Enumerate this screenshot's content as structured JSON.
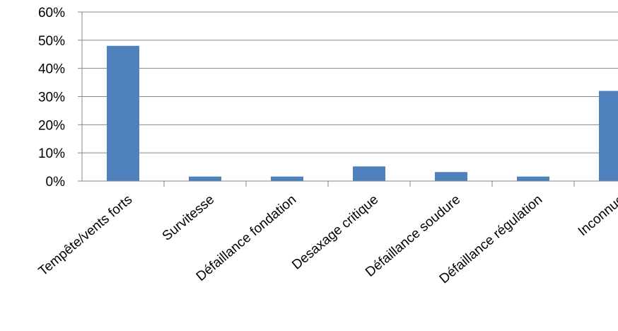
{
  "chart_data": {
    "type": "bar",
    "categories": [
      "Tempête/vents forts",
      "Survitesse",
      "Défaillance fondation",
      "Desaxage  critique",
      "Défaillance soudure",
      "Défaillance régulation",
      "Inconnue"
    ],
    "values": [
      48,
      1.6,
      1.6,
      5.2,
      3.2,
      1.6,
      32
    ],
    "y_ticks": [
      "0%",
      "10%",
      "20%",
      "30%",
      "40%",
      "50%",
      "60%"
    ],
    "ylim": [
      0,
      60
    ],
    "y_unit": "%",
    "title": "",
    "xlabel": "",
    "ylabel": "",
    "grid": true,
    "legend": "none",
    "bar_color": "#4F81BD",
    "grid_color": "#878787",
    "axis_color": "#878787"
  }
}
